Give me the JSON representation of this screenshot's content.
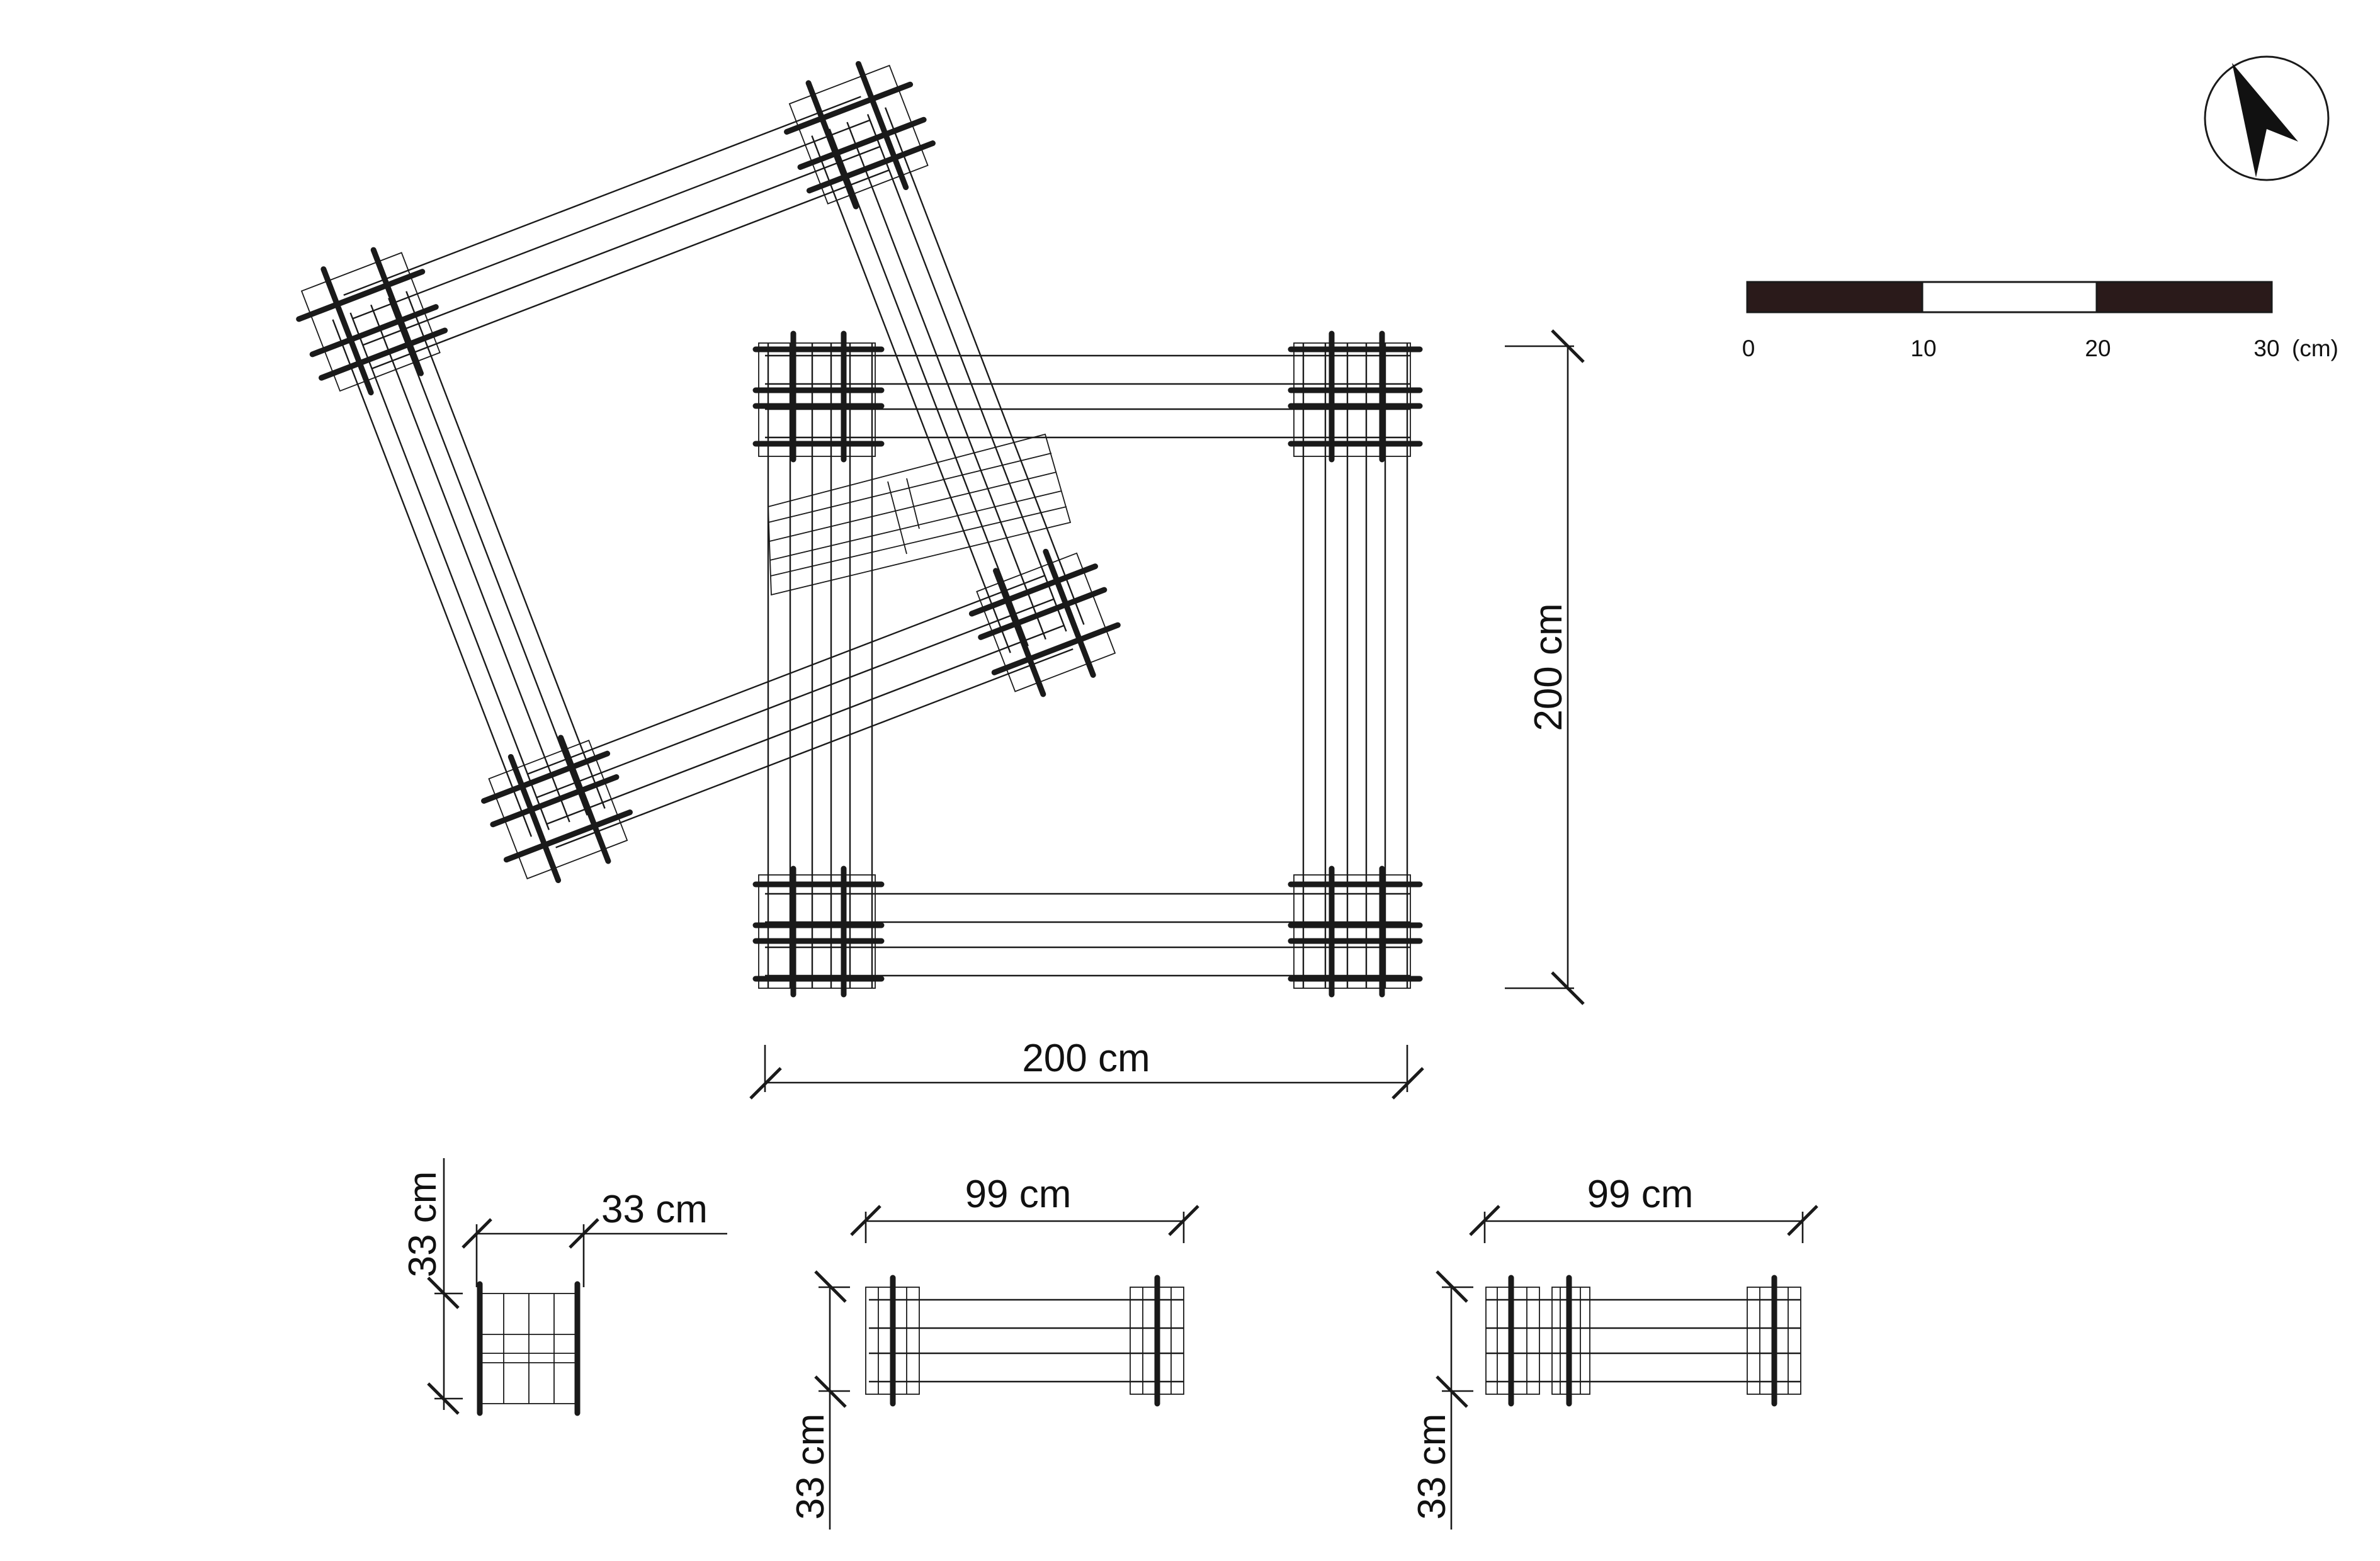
{
  "dimensions": {
    "main_width": "200 cm",
    "main_height": "200 cm",
    "module_a_width": "33 cm",
    "module_a_height": "33 cm",
    "module_b_width": "99 cm",
    "module_b_height": "33 cm",
    "module_c_width": "99 cm",
    "module_c_height": "33 cm"
  },
  "scale_bar": {
    "ticks": [
      "0",
      "10",
      "20",
      "30"
    ],
    "unit": "(cm)",
    "segment_colors": [
      "#2a1a1a",
      "#ffffff",
      "#2a1a1a"
    ]
  },
  "north_arrow": {
    "icon": "north-arrow-icon",
    "heading_degrees": -35
  },
  "colors": {
    "ink": "#1a1a1a",
    "background": "#ffffff"
  }
}
